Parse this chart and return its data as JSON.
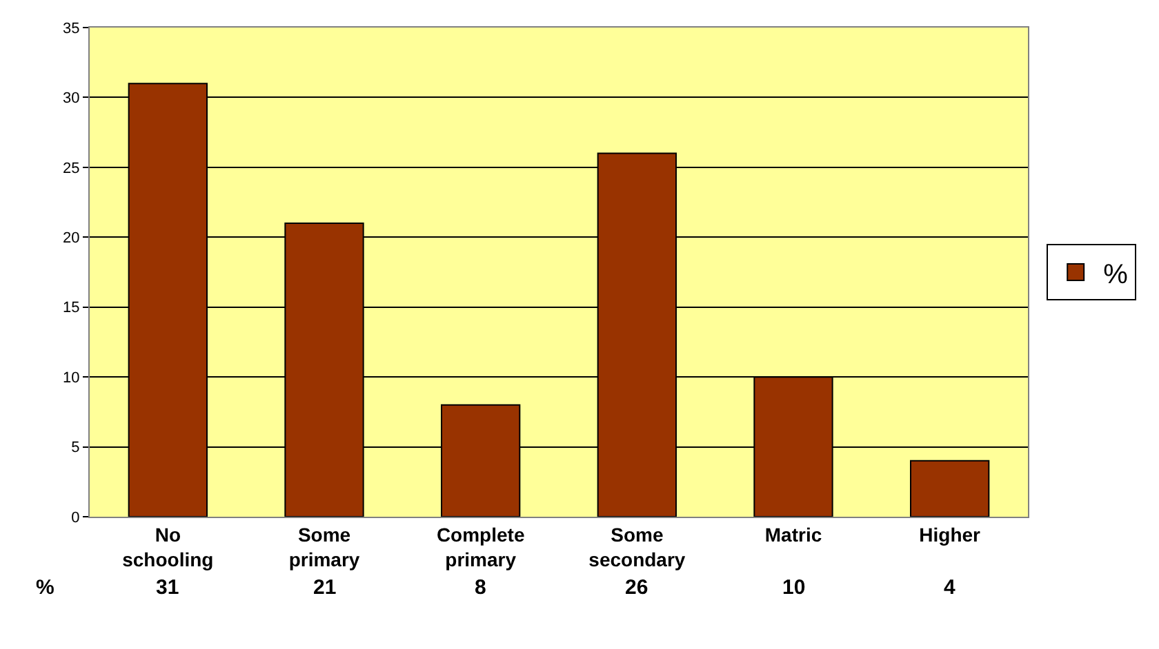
{
  "chart_data": {
    "type": "bar",
    "categories": [
      "No\nschooling",
      "Some\nprimary",
      "Complete\nprimary",
      "Some\nsecondary",
      "Matric",
      "Higher"
    ],
    "series": [
      {
        "name": "%",
        "color": "#993300",
        "values": [
          31,
          21,
          8,
          26,
          10,
          4
        ]
      }
    ],
    "ylim": [
      0,
      35
    ],
    "yticks": [
      0,
      5,
      10,
      15,
      20,
      25,
      30,
      35
    ],
    "grid": "y",
    "legend": "right",
    "data_labels": true
  }
}
